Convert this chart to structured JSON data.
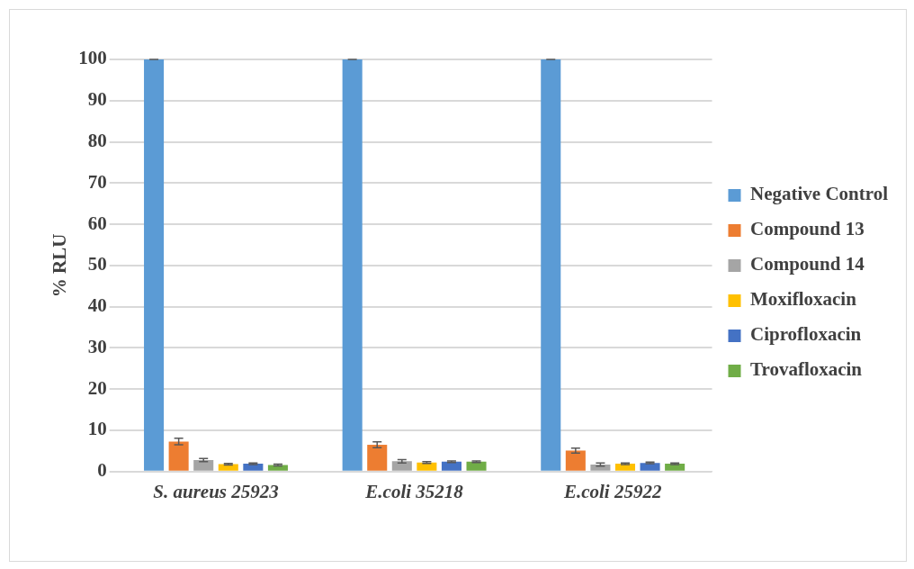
{
  "chart_data": {
    "type": "bar",
    "ylabel": "% RLU",
    "categories": [
      "S. aureus 25923",
      "E.coli 35218",
      "E.coli 25922"
    ],
    "ylim": [
      0,
      100
    ],
    "yticks": [
      0,
      10,
      20,
      30,
      40,
      50,
      60,
      70,
      80,
      90,
      100
    ],
    "grid": "y",
    "legend": "right",
    "series": [
      {
        "name": "Negative Control",
        "color": "#5b9bd5",
        "values": [
          100,
          100,
          100
        ],
        "errors": [
          0,
          0,
          0
        ]
      },
      {
        "name": "Compound 13",
        "color": "#ed7d31",
        "values": [
          7.3,
          6.5,
          5.1
        ],
        "errors": [
          0.8,
          0.7,
          0.6
        ]
      },
      {
        "name": "Compound 14",
        "color": "#a5a5a5",
        "values": [
          2.8,
          2.5,
          1.7
        ],
        "errors": [
          0.4,
          0.4,
          0.4
        ]
      },
      {
        "name": "Moxifloxacin",
        "color": "#ffc000",
        "values": [
          1.8,
          2.2,
          1.9
        ],
        "errors": [
          0.2,
          0.2,
          0.2
        ]
      },
      {
        "name": "Ciprofloxacin",
        "color": "#4472c4",
        "values": [
          1.9,
          2.4,
          2.1
        ],
        "errors": [
          0.2,
          0.2,
          0.2
        ]
      },
      {
        "name": "Trovafloxacin",
        "color": "#70ad47",
        "values": [
          1.6,
          2.4,
          1.9
        ],
        "errors": [
          0.2,
          0.2,
          0.2
        ]
      }
    ]
  }
}
